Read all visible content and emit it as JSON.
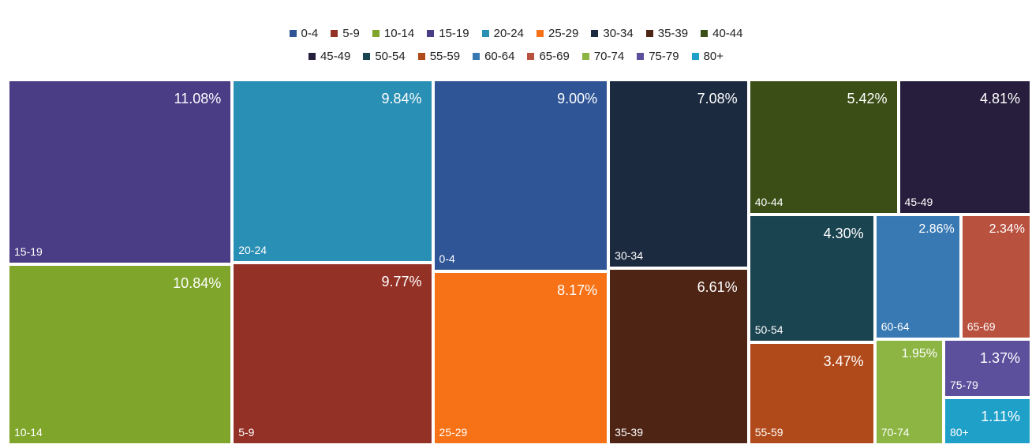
{
  "chart_data": {
    "type": "treemap",
    "legend_position": "top",
    "categories": [
      "0-4",
      "5-9",
      "10-14",
      "15-19",
      "20-24",
      "25-29",
      "30-34",
      "35-39",
      "40-44",
      "45-49",
      "50-54",
      "55-59",
      "60-64",
      "65-69",
      "70-74",
      "75-79",
      "80+"
    ],
    "colors": [
      "#2F5597",
      "#943126",
      "#7FA52B",
      "#4A3C85",
      "#2A8FB4",
      "#F77216",
      "#1C2A3F",
      "#4E2415",
      "#3A4E16",
      "#261E3C",
      "#1B4451",
      "#B14A1A",
      "#3879B4",
      "#B9513F",
      "#8CB543",
      "#5C4F9C",
      "#1FA0C9"
    ],
    "values": [
      9.0,
      9.77,
      10.84,
      11.08,
      9.84,
      8.17,
      7.08,
      6.61,
      5.42,
      4.81,
      4.3,
      3.47,
      2.86,
      2.34,
      1.95,
      1.37,
      1.11
    ],
    "labels": [
      "9.00%",
      "9.77%",
      "10.84%",
      "11.08%",
      "9.84%",
      "8.17%",
      "7.08%",
      "6.61%",
      "5.42%",
      "4.81%",
      "4.30%",
      "3.47%",
      "2.86%",
      "2.34%",
      "1.95%",
      "1.37%",
      "1.11%"
    ]
  }
}
